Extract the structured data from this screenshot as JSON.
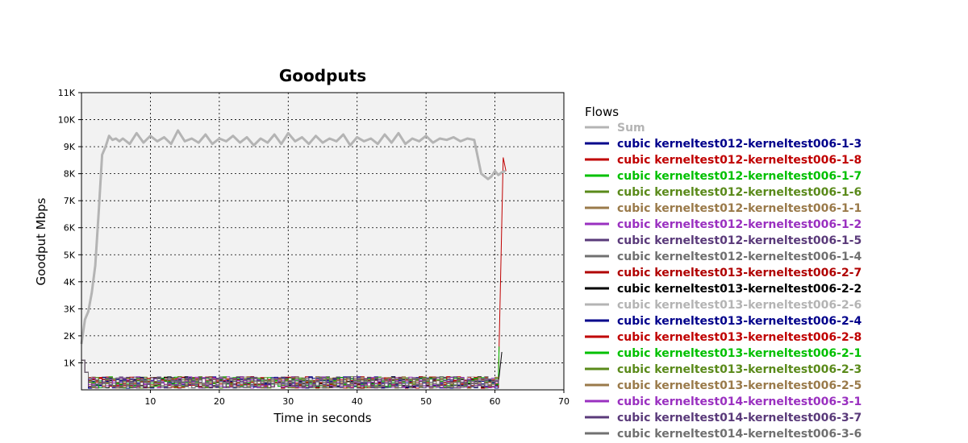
{
  "chart_data": {
    "type": "line",
    "title": "Goodputs",
    "xlabel": "Time in seconds",
    "ylabel": "Goodput Mbps",
    "xlim": [
      0,
      70
    ],
    "ylim": [
      0,
      11000
    ],
    "x_ticks": [
      10,
      20,
      30,
      40,
      50,
      60,
      70
    ],
    "y_ticks": [
      1000,
      2000,
      3000,
      4000,
      5000,
      6000,
      7000,
      8000,
      9000,
      10000,
      11000
    ],
    "x_tick_labels": [
      "10",
      "20",
      "30",
      "40",
      "50",
      "60",
      "70"
    ],
    "y_tick_labels": [
      "1K",
      "2K",
      "3K",
      "4K",
      "5K",
      "6K",
      "7K",
      "8K",
      "9K",
      "10K",
      "11K"
    ],
    "grid": true,
    "legend_title": "Flows",
    "legend_position": "right",
    "series": [
      {
        "name": "Sum",
        "color": "#b4b4b4",
        "x": [
          0,
          0.5,
          1,
          1.5,
          2,
          2.5,
          3,
          3.5,
          4,
          4.5,
          5,
          5.5,
          6,
          7,
          8,
          9,
          10,
          11,
          12,
          13,
          14,
          15,
          16,
          17,
          18,
          19,
          20,
          21,
          22,
          23,
          24,
          25,
          26,
          27,
          28,
          29,
          30,
          31,
          32,
          33,
          34,
          35,
          36,
          37,
          38,
          39,
          40,
          41,
          42,
          43,
          44,
          45,
          46,
          47,
          48,
          49,
          50,
          51,
          52,
          53,
          54,
          55,
          56,
          57,
          58,
          59,
          59.5,
          60,
          60.5,
          61,
          61.5
        ],
        "y": [
          1700,
          2600,
          2900,
          3600,
          4600,
          6600,
          8700,
          9000,
          9400,
          9250,
          9300,
          9200,
          9300,
          9100,
          9500,
          9150,
          9400,
          9200,
          9350,
          9100,
          9600,
          9200,
          9300,
          9150,
          9450,
          9100,
          9300,
          9200,
          9400,
          9150,
          9350,
          9050,
          9300,
          9150,
          9450,
          9100,
          9500,
          9200,
          9350,
          9100,
          9400,
          9150,
          9300,
          9200,
          9450,
          9050,
          9350,
          9200,
          9300,
          9100,
          9450,
          9150,
          9500,
          9100,
          9300,
          9200,
          9400,
          9150,
          9300,
          9250,
          9350,
          9200,
          9300,
          9250,
          8000,
          7800,
          7900,
          8100,
          7950,
          8050,
          8100
        ]
      },
      {
        "name": "cubic kerneltest012-kerneltest006-1-3",
        "color": "#00008b"
      },
      {
        "name": "cubic kerneltest012-kerneltest006-1-8",
        "color": "#c00000"
      },
      {
        "name": "cubic kerneltest012-kerneltest006-1-7",
        "color": "#00c000"
      },
      {
        "name": "cubic kerneltest012-kerneltest006-1-6",
        "color": "#5a8a1a"
      },
      {
        "name": "cubic kerneltest012-kerneltest006-1-1",
        "color": "#9a7a4a"
      },
      {
        "name": "cubic kerneltest012-kerneltest006-1-2",
        "color": "#9a30c0"
      },
      {
        "name": "cubic kerneltest012-kerneltest006-1-5",
        "color": "#5a3a7a"
      },
      {
        "name": "cubic kerneltest012-kerneltest006-1-4",
        "color": "#707070"
      },
      {
        "name": "cubic kerneltest013-kerneltest006-2-7",
        "color": "#b00000"
      },
      {
        "name": "cubic kerneltest013-kerneltest006-2-2",
        "color": "#000000"
      },
      {
        "name": "cubic kerneltest013-kerneltest006-2-6",
        "color": "#b4b4b4"
      },
      {
        "name": "cubic kerneltest013-kerneltest006-2-4",
        "color": "#00008b"
      },
      {
        "name": "cubic kerneltest013-kerneltest006-2-8",
        "color": "#c00000"
      },
      {
        "name": "cubic kerneltest013-kerneltest006-2-1",
        "color": "#00c000"
      },
      {
        "name": "cubic kerneltest013-kerneltest006-2-3",
        "color": "#5a8a1a"
      },
      {
        "name": "cubic kerneltest013-kerneltest006-2-5",
        "color": "#9a7a4a"
      },
      {
        "name": "cubic kerneltest014-kerneltest006-3-1",
        "color": "#9a30c0"
      },
      {
        "name": "cubic kerneltest014-kerneltest006-3-7",
        "color": "#5a3a7a"
      },
      {
        "name": "cubic kerneltest014-kerneltest006-3-6",
        "color": "#707070"
      }
    ]
  }
}
